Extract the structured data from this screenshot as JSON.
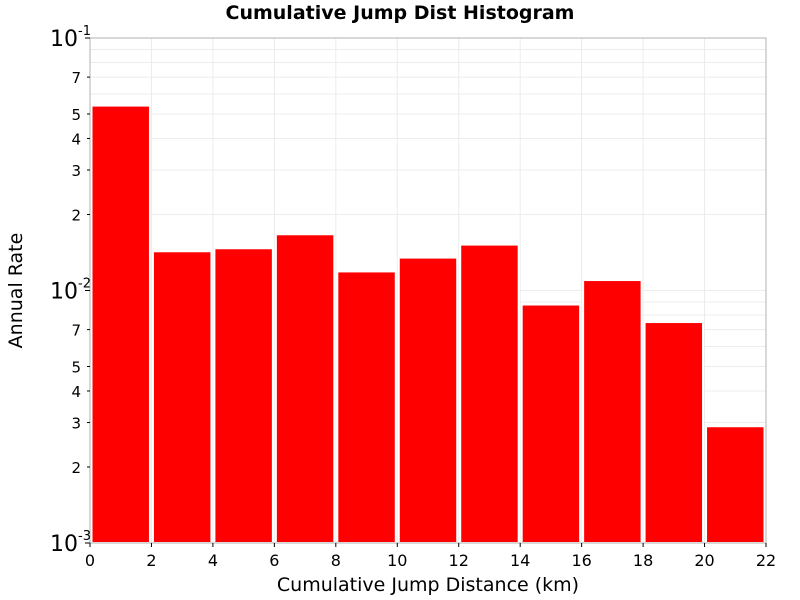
{
  "chart_data": {
    "type": "bar",
    "title": "Cumulative Jump Dist Histogram",
    "xlabel": "Cumulative Jump Distance (km)",
    "ylabel": "Annual Rate",
    "x_scale": "linear",
    "y_scale": "log",
    "xlim": [
      0,
      22
    ],
    "ylim": [
      0.001,
      0.1
    ],
    "x_ticks": [
      "0",
      "2",
      "4",
      "6",
      "8",
      "10",
      "12",
      "14",
      "16",
      "18",
      "20",
      "22"
    ],
    "y_major_ticks": [
      {
        "base": "10",
        "exp": "-3"
      },
      {
        "base": "10",
        "exp": "-2"
      },
      {
        "base": "10",
        "exp": "-1"
      }
    ],
    "y_minor_tick_labels": [
      "2",
      "3",
      "4",
      "5",
      "7"
    ],
    "grid": true,
    "bar_color": "#ff0000",
    "bins": [
      {
        "x0": 0,
        "x1": 2,
        "value": 0.054
      },
      {
        "x0": 2,
        "x1": 4,
        "value": 0.0143
      },
      {
        "x0": 4,
        "x1": 6,
        "value": 0.0147
      },
      {
        "x0": 6,
        "x1": 8,
        "value": 0.0167
      },
      {
        "x0": 8,
        "x1": 10,
        "value": 0.0119
      },
      {
        "x0": 10,
        "x1": 12,
        "value": 0.0135
      },
      {
        "x0": 12,
        "x1": 14,
        "value": 0.0152
      },
      {
        "x0": 14,
        "x1": 16,
        "value": 0.0088
      },
      {
        "x0": 16,
        "x1": 18,
        "value": 0.011
      },
      {
        "x0": 18,
        "x1": 20,
        "value": 0.0075
      },
      {
        "x0": 20,
        "x1": 22,
        "value": 0.0029
      }
    ]
  }
}
